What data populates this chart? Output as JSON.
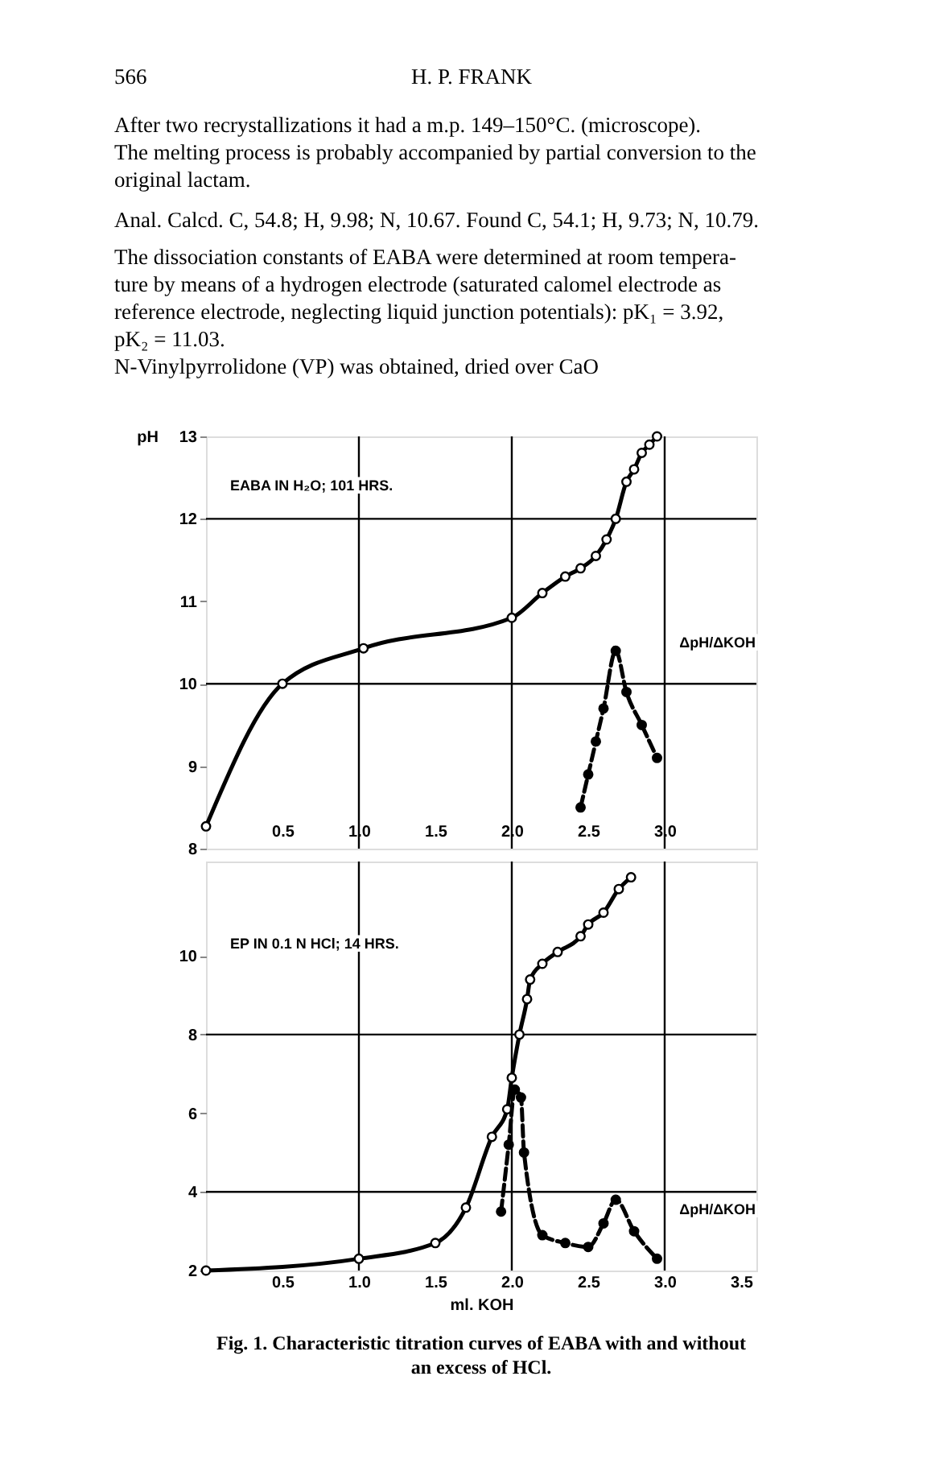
{
  "chart_data": [
    {
      "type": "line",
      "ylabel": "pH",
      "xlim": [
        0,
        3.6
      ],
      "ylim": [
        8,
        13
      ],
      "xticks": [
        0.5,
        {
          "value": 1,
          "label": "1.0"
        },
        1.5,
        {
          "value": 2,
          "label": "2.0"
        },
        2.5,
        {
          "value": 3,
          "label": "3.0"
        }
      ],
      "yticks": [
        8,
        9,
        10,
        11,
        12,
        13
      ],
      "series": [
        {
          "color": "#000000",
          "marker": "circle",
          "line_style": "solid",
          "x": [
            0,
            0.5,
            1.03,
            2.0,
            2.2,
            2.35,
            2.45,
            2.55,
            2.62,
            2.68,
            2.75,
            2.8,
            2.85,
            2.9,
            2.95
          ],
          "values": [
            8.27,
            10.0,
            10.43,
            10.8,
            11.1,
            11.3,
            11.4,
            11.55,
            11.75,
            12.0,
            12.45,
            12.6,
            12.8,
            12.9,
            13.0
          ]
        },
        {
          "color": "#000000",
          "marker": "circle",
          "line_style": "dashed",
          "x": [
            2.45,
            2.5,
            2.55,
            2.6,
            2.68,
            2.75,
            2.85,
            2.95
          ],
          "values": [
            8.5,
            8.9,
            9.3,
            9.7,
            10.4,
            9.9,
            9.5,
            9.1
          ]
        }
      ],
      "ref_lines": [
        {
          "axis": "x",
          "value": 1
        },
        {
          "axis": "x",
          "value": 2
        },
        {
          "axis": "x",
          "value": 3
        },
        {
          "axis": "y",
          "value": 10
        },
        {
          "axis": "y",
          "value": 12
        }
      ],
      "annotations": [
        "566",
        "H. P. FRANK",
        "After two recrystallizations it had a m.p. 149–150°C. (microscope).",
        "The melting process is probably accompanied by partial conversion to the",
        "original lactam.",
        "Anal.  Calcd. C, 54.8; H, 9.98; N, 10.67.  Found C, 54.1; H, 9.73; N, 10.79.",
        "The dissociation constants of EABA were determined at room tempera-",
        "ture by means of a hydrogen electrode (saturated calomel electrode as",
        "reference electrode, neglecting liquid junction potentials):  pK₁ = 3.92,",
        "pK₂ = 11.03.",
        "N-Vinylpyrrolidone (VP) was obtained, dried over CaO",
        "ΔpH/ΔKOH"
      ],
      "title": "EABA IN H₂O; 101 HRS."
    },
    {
      "type": "line",
      "xlabel": "ml. KOH",
      "xlim": [
        0,
        3.6
      ],
      "ylim": [
        2,
        12.4
      ],
      "xticks": [
        0.5,
        {
          "value": 1,
          "label": "1.0"
        },
        1.5,
        {
          "value": 2,
          "label": "2.0"
        },
        2.5,
        {
          "value": 3,
          "label": "3.0"
        },
        3.5
      ],
      "yticks": [
        2,
        4,
        6,
        8,
        10
      ],
      "series": [
        {
          "color": "#000000",
          "marker": "circle",
          "line_style": "solid",
          "x": [
            0,
            1.0,
            1.5,
            1.7,
            1.87,
            1.97,
            2.0,
            2.05,
            2.1,
            2.12,
            2.2,
            2.3,
            2.45,
            2.5,
            2.6,
            2.7,
            2.78
          ],
          "values": [
            2.0,
            2.3,
            2.7,
            3.6,
            5.4,
            6.1,
            6.9,
            8.0,
            8.9,
            9.4,
            9.8,
            10.1,
            10.5,
            10.8,
            11.1,
            11.7,
            12.0
          ]
        },
        {
          "color": "#000000",
          "marker": "circle",
          "line_style": "dashed",
          "x": [
            1.93,
            1.98,
            2.02,
            2.06,
            2.08,
            2.2,
            2.35,
            2.5,
            2.6,
            2.68,
            2.8,
            2.95
          ],
          "values": [
            3.5,
            5.2,
            6.6,
            6.4,
            5.0,
            2.9,
            2.7,
            2.6,
            3.2,
            3.8,
            3.0,
            2.3
          ]
        }
      ],
      "ref_lines": [
        {
          "axis": "x",
          "value": 1
        },
        {
          "axis": "x",
          "value": 2
        },
        {
          "axis": "x",
          "value": 3
        },
        {
          "axis": "y",
          "value": 4
        },
        {
          "axis": "y",
          "value": 8
        }
      ],
      "title": "EP IN 0.1 N HCl; 14 HRS.",
      "annotations": [
        "ΔpH/ΔKOH",
        "Fig. 1. Characteristic titration curves of EABA with and without",
        "an excess of HCl."
      ]
    }
  ]
}
